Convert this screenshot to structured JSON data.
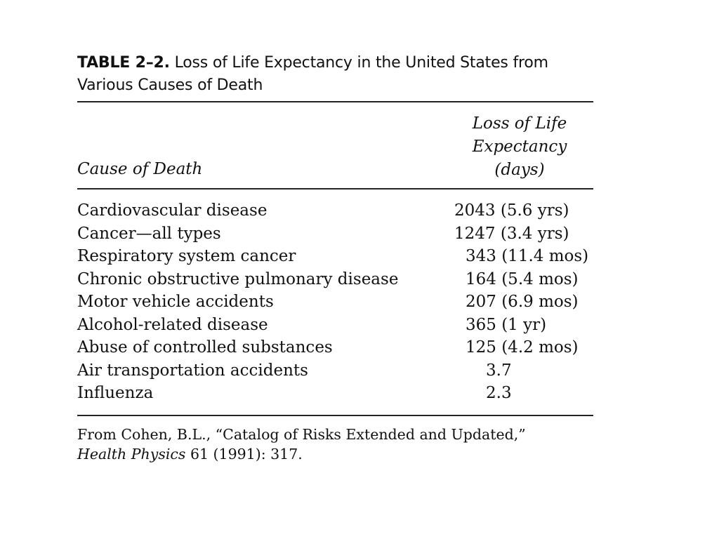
{
  "table": {
    "label": "TABLE 2–2.",
    "title": "Loss of Life Expectancy in the United States from Various Causes of Death",
    "headers": {
      "cause": "Cause of Death",
      "loss_line1": "Loss of Life",
      "loss_line2": "Expectancy",
      "loss_line3": "(days)"
    },
    "rows": [
      {
        "cause": "Cardiovascular disease",
        "loss": "2043 (5.6 yrs)"
      },
      {
        "cause": "Cancer—all types",
        "loss": "1247 (3.4 yrs)"
      },
      {
        "cause": "Respiratory system cancer",
        "loss": "343 (11.4 mos)"
      },
      {
        "cause": "Chronic obstructive pulmonary disease",
        "loss": "164 (5.4 mos)"
      },
      {
        "cause": "Motor vehicle accidents",
        "loss": "207 (6.9 mos)"
      },
      {
        "cause": "Alcohol-related disease",
        "loss": "365 (1 yr)"
      },
      {
        "cause": "Abuse of controlled substances",
        "loss": "125 (4.2 mos)"
      },
      {
        "cause": "Air transportation accidents",
        "loss": "3.7"
      },
      {
        "cause": "Influenza",
        "loss": "2.3"
      }
    ],
    "source": {
      "prefix": "From Cohen, B.L., “Catalog of Risks Extended and Updated,”",
      "journal": "Health Physics",
      "citation": "61 (1991): 317."
    }
  }
}
